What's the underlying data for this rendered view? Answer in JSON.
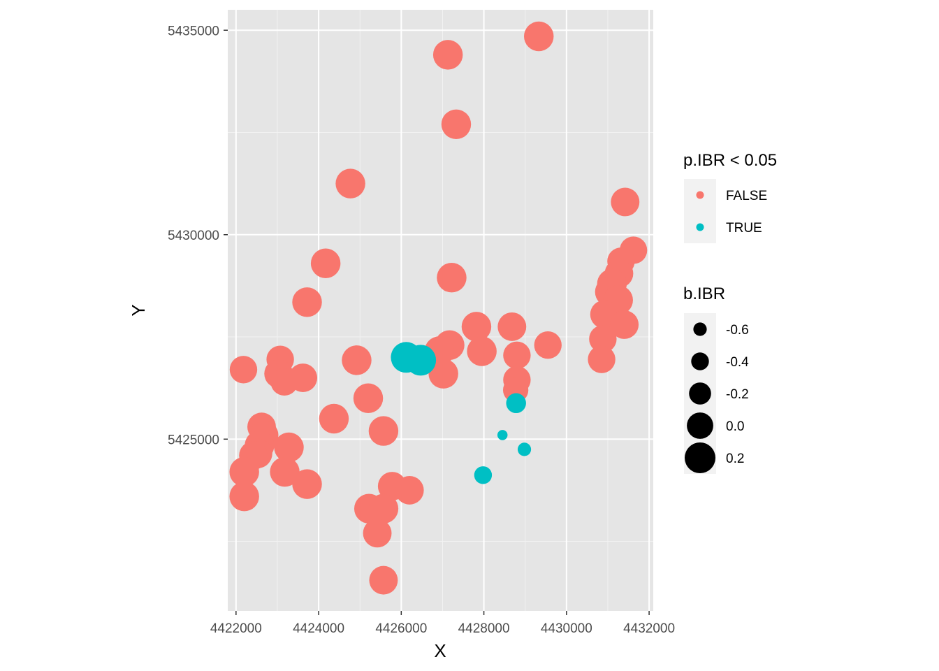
{
  "chart_data": {
    "type": "scatter",
    "title": "",
    "xlabel": "X",
    "ylabel": "Y",
    "xlim": [
      4421800,
      4432100
    ],
    "ylim": [
      5420800,
      5435500
    ],
    "x_ticks": [
      4422000,
      4424000,
      4426000,
      4428000,
      4430000,
      4432000
    ],
    "x_tick_labels": [
      "4422000",
      "4424000",
      "4426000",
      "4428000",
      "4430000",
      "4432000"
    ],
    "y_ticks": [
      5425000,
      5430000,
      5435000
    ],
    "y_tick_labels": [
      "5425000",
      "5430000",
      "5435000"
    ],
    "grid": true,
    "colors": {
      "panel_bg": "#e5e5e5",
      "grid_major": "#ffffff",
      "grid_minor": "#f2f2f2",
      "FALSE": "#f8766d",
      "TRUE": "#00bfc4",
      "legend_key_bg": "#f2f2f2"
    },
    "legend_color": {
      "title": "p.IBR < 0.05",
      "items": [
        {
          "label": "FALSE",
          "key": "FALSE"
        },
        {
          "label": "TRUE",
          "key": "TRUE"
        }
      ]
    },
    "legend_size": {
      "title": "b.IBR",
      "items": [
        {
          "label": "-0.6",
          "value": -0.6
        },
        {
          "label": "-0.4",
          "value": -0.4
        },
        {
          "label": "-0.2",
          "value": -0.2
        },
        {
          "label": "0.0",
          "value": 0.0
        },
        {
          "label": "0.2",
          "value": 0.2
        }
      ]
    },
    "points": [
      {
        "x": 4429330,
        "y": 5434850,
        "group": "FALSE",
        "b": 0.15
      },
      {
        "x": 4427130,
        "y": 5434400,
        "group": "FALSE",
        "b": 0.15
      },
      {
        "x": 4427330,
        "y": 5432700,
        "group": "FALSE",
        "b": 0.15
      },
      {
        "x": 4424770,
        "y": 5431250,
        "group": "FALSE",
        "b": 0.15
      },
      {
        "x": 4431420,
        "y": 5430800,
        "group": "FALSE",
        "b": 0.1
      },
      {
        "x": 4431620,
        "y": 5429620,
        "group": "FALSE",
        "b": 0.05
      },
      {
        "x": 4431320,
        "y": 5429350,
        "group": "FALSE",
        "b": 0.05
      },
      {
        "x": 4431270,
        "y": 5429050,
        "group": "FALSE",
        "b": 0.1
      },
      {
        "x": 4431100,
        "y": 5428800,
        "group": "FALSE",
        "b": 0.15
      },
      {
        "x": 4431050,
        "y": 5428600,
        "group": "FALSE",
        "b": 0.15
      },
      {
        "x": 4431250,
        "y": 5428400,
        "group": "FALSE",
        "b": 0.15
      },
      {
        "x": 4430920,
        "y": 5428050,
        "group": "FALSE",
        "b": 0.1
      },
      {
        "x": 4431400,
        "y": 5427800,
        "group": "FALSE",
        "b": 0.1
      },
      {
        "x": 4430880,
        "y": 5427450,
        "group": "FALSE",
        "b": 0.05
      },
      {
        "x": 4430850,
        "y": 5426950,
        "group": "FALSE",
        "b": 0.05
      },
      {
        "x": 4424170,
        "y": 5429300,
        "group": "FALSE",
        "b": 0.15
      },
      {
        "x": 4427220,
        "y": 5428950,
        "group": "FALSE",
        "b": 0.15
      },
      {
        "x": 4423720,
        "y": 5428350,
        "group": "FALSE",
        "b": 0.15
      },
      {
        "x": 4427820,
        "y": 5427750,
        "group": "FALSE",
        "b": 0.15
      },
      {
        "x": 4428680,
        "y": 5427750,
        "group": "FALSE",
        "b": 0.1
      },
      {
        "x": 4429550,
        "y": 5427300,
        "group": "FALSE",
        "b": 0.05
      },
      {
        "x": 4427170,
        "y": 5427300,
        "group": "FALSE",
        "b": 0.15
      },
      {
        "x": 4426920,
        "y": 5427150,
        "group": "FALSE",
        "b": 0.15
      },
      {
        "x": 4427950,
        "y": 5427150,
        "group": "FALSE",
        "b": 0.15
      },
      {
        "x": 4428800,
        "y": 5427050,
        "group": "FALSE",
        "b": 0.05
      },
      {
        "x": 4424920,
        "y": 5426930,
        "group": "FALSE",
        "b": 0.15
      },
      {
        "x": 4423070,
        "y": 5426950,
        "group": "FALSE",
        "b": 0.05
      },
      {
        "x": 4422180,
        "y": 5426700,
        "group": "FALSE",
        "b": 0.05
      },
      {
        "x": 4423030,
        "y": 5426600,
        "group": "FALSE",
        "b": 0.1
      },
      {
        "x": 4423620,
        "y": 5426500,
        "group": "FALSE",
        "b": 0.1
      },
      {
        "x": 4423170,
        "y": 5426400,
        "group": "FALSE",
        "b": 0.05
      },
      {
        "x": 4427020,
        "y": 5426600,
        "group": "FALSE",
        "b": 0.15
      },
      {
        "x": 4428800,
        "y": 5426450,
        "group": "FALSE",
        "b": 0.05
      },
      {
        "x": 4428770,
        "y": 5426200,
        "group": "FALSE",
        "b": -0.05
      },
      {
        "x": 4425200,
        "y": 5426000,
        "group": "FALSE",
        "b": 0.15
      },
      {
        "x": 4424370,
        "y": 5425500,
        "group": "FALSE",
        "b": 0.15
      },
      {
        "x": 4422620,
        "y": 5425300,
        "group": "FALSE",
        "b": 0.1
      },
      {
        "x": 4425570,
        "y": 5425200,
        "group": "FALSE",
        "b": 0.15
      },
      {
        "x": 4422680,
        "y": 5425100,
        "group": "FALSE",
        "b": 0.1
      },
      {
        "x": 4422570,
        "y": 5424850,
        "group": "FALSE",
        "b": 0.15
      },
      {
        "x": 4423280,
        "y": 5424800,
        "group": "FALSE",
        "b": 0.15
      },
      {
        "x": 4422520,
        "y": 5424650,
        "group": "FALSE",
        "b": 0.15
      },
      {
        "x": 4422420,
        "y": 5424600,
        "group": "FALSE",
        "b": 0.1
      },
      {
        "x": 4422200,
        "y": 5424200,
        "group": "FALSE",
        "b": 0.15
      },
      {
        "x": 4423180,
        "y": 5424200,
        "group": "FALSE",
        "b": 0.15
      },
      {
        "x": 4423720,
        "y": 5423900,
        "group": "FALSE",
        "b": 0.15
      },
      {
        "x": 4425780,
        "y": 5423850,
        "group": "FALSE",
        "b": 0.1
      },
      {
        "x": 4426200,
        "y": 5423750,
        "group": "FALSE",
        "b": 0.1
      },
      {
        "x": 4422200,
        "y": 5423600,
        "group": "FALSE",
        "b": 0.15
      },
      {
        "x": 4425220,
        "y": 5423300,
        "group": "FALSE",
        "b": 0.15
      },
      {
        "x": 4425570,
        "y": 5423300,
        "group": "FALSE",
        "b": 0.15
      },
      {
        "x": 4425420,
        "y": 5422700,
        "group": "FALSE",
        "b": 0.1
      },
      {
        "x": 4425570,
        "y": 5421550,
        "group": "FALSE",
        "b": 0.1
      },
      {
        "x": 4426120,
        "y": 5427000,
        "group": "TRUE",
        "b": 0.2
      },
      {
        "x": 4426470,
        "y": 5426930,
        "group": "TRUE",
        "b": 0.2
      },
      {
        "x": 4428780,
        "y": 5425880,
        "group": "TRUE",
        "b": -0.3
      },
      {
        "x": 4428450,
        "y": 5425100,
        "group": "TRUE",
        "b": -0.75
      },
      {
        "x": 4428980,
        "y": 5424750,
        "group": "TRUE",
        "b": -0.6
      },
      {
        "x": 4427980,
        "y": 5424120,
        "group": "TRUE",
        "b": -0.4
      }
    ]
  }
}
